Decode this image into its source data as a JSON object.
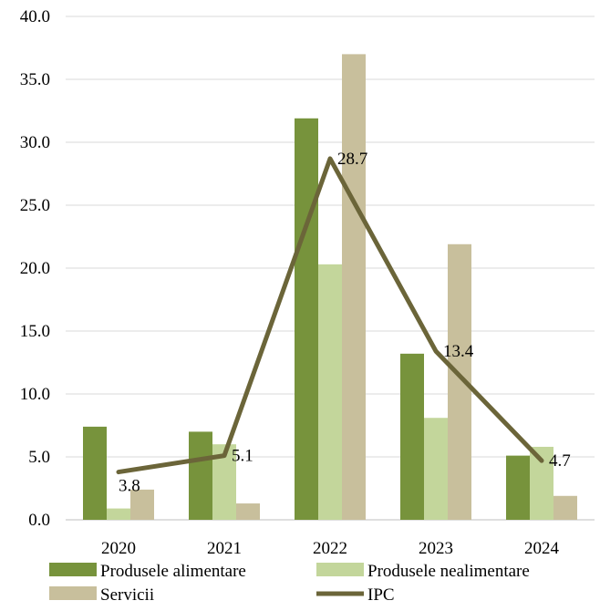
{
  "chart_data": {
    "type": "bar",
    "categories": [
      "2020",
      "2021",
      "2022",
      "2023",
      "2024"
    ],
    "series": [
      {
        "name": "Produsele alimentare",
        "type": "bar",
        "color": "#77933c",
        "values": [
          7.4,
          7.0,
          31.9,
          13.2,
          5.1
        ]
      },
      {
        "name": "Produsele nealimentare",
        "type": "bar",
        "color": "#c3d69b",
        "values": [
          0.9,
          6.0,
          20.3,
          8.1,
          5.8
        ]
      },
      {
        "name": "Servicii",
        "type": "bar",
        "color": "#c8bf9c",
        "values": [
          2.4,
          1.3,
          37.0,
          21.9,
          1.9
        ]
      },
      {
        "name": "IPC",
        "type": "line",
        "color": "#6b6539",
        "values": [
          3.8,
          5.1,
          28.7,
          13.4,
          4.7
        ]
      }
    ],
    "data_labels": [
      "3.8",
      "5.1",
      "28.7",
      "13.4",
      "4.7"
    ],
    "y_ticks": [
      "0.0",
      "5.0",
      "10.0",
      "15.0",
      "20.0",
      "25.0",
      "30.0",
      "35.0",
      "40.0"
    ],
    "ylim": [
      0,
      40
    ],
    "grid": true,
    "legend_position": "bottom"
  }
}
